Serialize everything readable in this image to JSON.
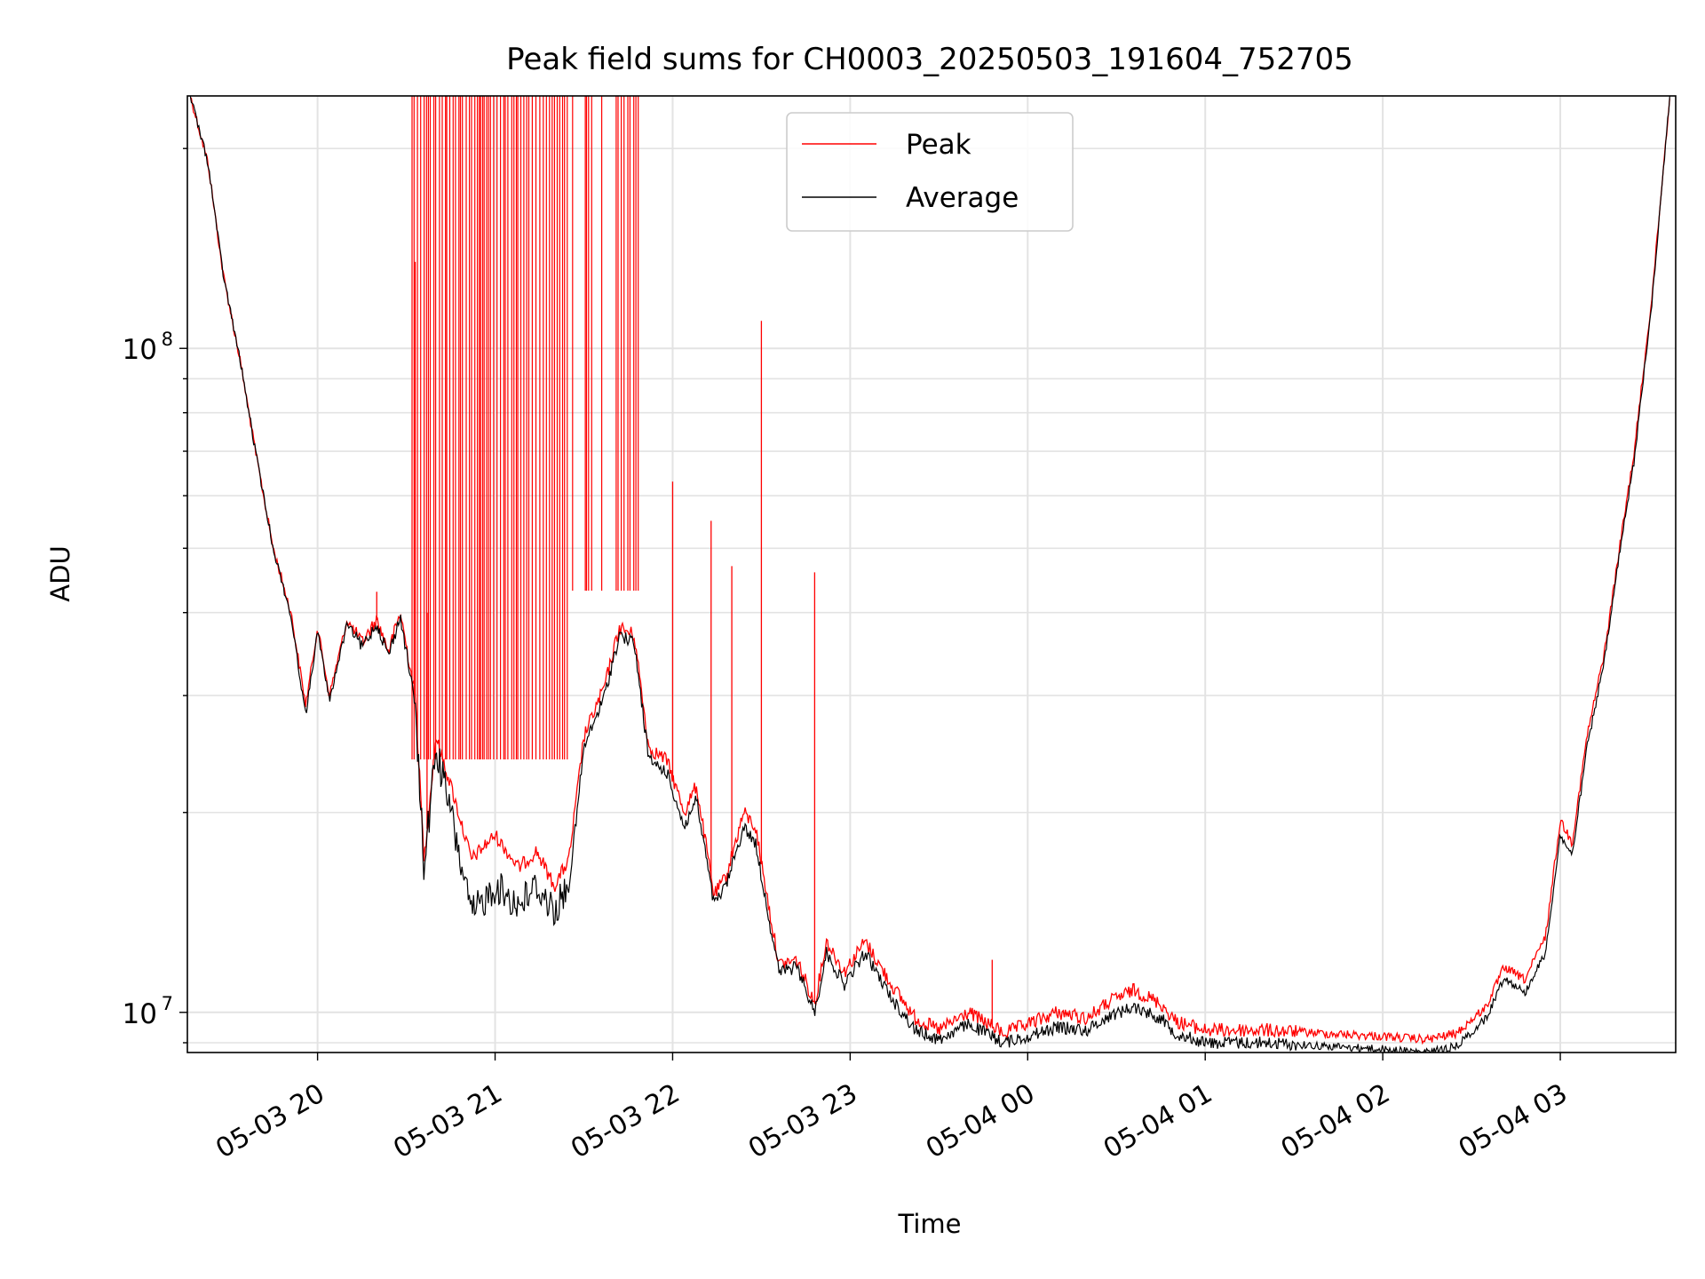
{
  "chart_data": {
    "type": "line",
    "title": "Peak field sums for CH0003_20250503_191604_752705",
    "xlabel": "Time",
    "ylabel": "ADU",
    "y_scale": "log",
    "ylim": [
      8700000,
      240000000
    ],
    "xlim": [
      "2025-05-03 19:16",
      "2025-05-04 03:39"
    ],
    "grid": true,
    "legend_position": "top-center",
    "x_ticks": [
      {
        "t": "2025-05-03 20:00",
        "label": "05-03 20"
      },
      {
        "t": "2025-05-03 21:00",
        "label": "05-03 21"
      },
      {
        "t": "2025-05-03 22:00",
        "label": "05-03 22"
      },
      {
        "t": "2025-05-03 23:00",
        "label": "05-03 23"
      },
      {
        "t": "2025-05-04 00:00",
        "label": "05-04 00"
      },
      {
        "t": "2025-05-04 01:00",
        "label": "05-04 01"
      },
      {
        "t": "2025-05-04 02:00",
        "label": "05-04 02"
      },
      {
        "t": "2025-05-04 03:00",
        "label": "05-04 03"
      }
    ],
    "y_ticks": [
      {
        "value": 10000000,
        "base": "10",
        "exp": "7"
      },
      {
        "value": 100000000,
        "base": "10",
        "exp": "8"
      }
    ],
    "series": [
      {
        "name": "Peak",
        "color": "#ff0000",
        "points": [
          [
            "2025-05-03 19:17",
            240000000
          ],
          [
            "2025-05-03 19:23",
            190000000
          ],
          [
            "2025-05-03 19:28",
            130000000
          ],
          [
            "2025-05-03 19:34",
            95000000
          ],
          [
            "2025-05-03 19:39",
            70000000
          ],
          [
            "2025-05-03 19:45",
            50000000
          ],
          [
            "2025-05-03 19:51",
            40000000
          ],
          [
            "2025-05-03 19:56",
            29000000
          ],
          [
            "2025-05-03 20:00",
            38000000
          ],
          [
            "2025-05-03 20:04",
            30000000
          ],
          [
            "2025-05-03 20:10",
            39000000
          ],
          [
            "2025-05-03 20:15",
            36000000
          ],
          [
            "2025-05-03 20:20",
            39000000
          ],
          [
            "2025-05-03 20:24",
            35000000
          ],
          [
            "2025-05-03 20:28",
            40000000
          ],
          [
            "2025-05-03 20:33",
            30000000
          ],
          [
            "2025-05-03 20:36",
            17000000
          ],
          [
            "2025-05-03 20:40",
            26000000
          ],
          [
            "2025-05-03 20:45",
            22000000
          ],
          [
            "2025-05-03 20:52",
            17000000
          ],
          [
            "2025-05-03 21:00",
            18500000
          ],
          [
            "2025-05-03 21:08",
            16500000
          ],
          [
            "2025-05-03 21:14",
            17500000
          ],
          [
            "2025-05-03 21:20",
            15500000
          ],
          [
            "2025-05-03 21:25",
            17000000
          ],
          [
            "2025-05-03 21:30",
            26000000
          ],
          [
            "2025-05-03 21:37",
            31000000
          ],
          [
            "2025-05-03 21:42",
            38000000
          ],
          [
            "2025-05-03 21:47",
            37000000
          ],
          [
            "2025-05-03 21:52",
            25000000
          ],
          [
            "2025-05-03 21:58",
            24000000
          ],
          [
            "2025-05-03 22:04",
            20000000
          ],
          [
            "2025-05-03 22:08",
            22000000
          ],
          [
            "2025-05-03 22:14",
            15000000
          ],
          [
            "2025-05-03 22:18",
            16000000
          ],
          [
            "2025-05-03 22:24",
            20000000
          ],
          [
            "2025-05-03 22:28",
            19000000
          ],
          [
            "2025-05-03 22:33",
            14000000
          ],
          [
            "2025-05-03 22:36",
            11800000
          ],
          [
            "2025-05-03 22:42",
            12000000
          ],
          [
            "2025-05-03 22:48",
            10300000
          ],
          [
            "2025-05-03 22:52",
            12800000
          ],
          [
            "2025-05-03 22:58",
            11500000
          ],
          [
            "2025-05-03 23:05",
            12800000
          ],
          [
            "2025-05-03 23:14",
            11000000
          ],
          [
            "2025-05-03 23:22",
            9800000
          ],
          [
            "2025-05-03 23:30",
            9400000
          ],
          [
            "2025-05-03 23:40",
            10000000
          ],
          [
            "2025-05-03 23:52",
            9300000
          ],
          [
            "2025-05-04 00:00",
            9600000
          ],
          [
            "2025-05-04 00:10",
            10000000
          ],
          [
            "2025-05-04 00:20",
            9800000
          ],
          [
            "2025-05-04 00:28",
            10400000
          ],
          [
            "2025-05-04 00:36",
            10800000
          ],
          [
            "2025-05-04 00:45",
            10300000
          ],
          [
            "2025-05-04 00:50",
            9700000
          ],
          [
            "2025-05-04 01:00",
            9400000
          ],
          [
            "2025-05-04 01:20",
            9400000
          ],
          [
            "2025-05-04 01:40",
            9300000
          ],
          [
            "2025-05-04 02:00",
            9200000
          ],
          [
            "2025-05-04 02:15",
            9100000
          ],
          [
            "2025-05-04 02:25",
            9300000
          ],
          [
            "2025-05-04 02:35",
            10200000
          ],
          [
            "2025-05-04 02:41",
            11700000
          ],
          [
            "2025-05-04 02:48",
            11200000
          ],
          [
            "2025-05-04 02:55",
            13000000
          ],
          [
            "2025-05-04 03:00",
            19500000
          ],
          [
            "2025-05-04 03:04",
            18000000
          ],
          [
            "2025-05-04 03:09",
            26000000
          ],
          [
            "2025-05-04 03:15",
            35000000
          ],
          [
            "2025-05-04 03:20",
            50000000
          ],
          [
            "2025-05-04 03:25",
            70000000
          ],
          [
            "2025-05-04 03:31",
            120000000
          ],
          [
            "2025-05-04 03:37",
            240000000
          ]
        ],
        "spikes": [
          [
            "2025-05-03 20:20",
            43000000
          ],
          [
            "2025-05-03 20:33",
            135000000
          ],
          [
            "2025-05-03 20:37",
            40000000
          ],
          [
            "2025-05-03 22:00",
            63000000
          ],
          [
            "2025-05-03 22:13",
            55000000
          ],
          [
            "2025-05-03 22:20",
            47000000
          ],
          [
            "2025-05-03 22:30",
            110000000
          ],
          [
            "2025-05-03 22:48",
            46000000
          ],
          [
            "2025-05-03 23:48",
            12000000
          ]
        ]
      },
      {
        "name": "Average",
        "color": "#000000",
        "points": [
          [
            "2025-05-03 19:17",
            240000000
          ],
          [
            "2025-05-03 19:23",
            190000000
          ],
          [
            "2025-05-03 19:28",
            130000000
          ],
          [
            "2025-05-03 19:34",
            95000000
          ],
          [
            "2025-05-03 19:39",
            70000000
          ],
          [
            "2025-05-03 19:45",
            50000000
          ],
          [
            "2025-05-03 19:51",
            39500000
          ],
          [
            "2025-05-03 19:56",
            28000000
          ],
          [
            "2025-05-03 20:00",
            37500000
          ],
          [
            "2025-05-03 20:04",
            29500000
          ],
          [
            "2025-05-03 20:10",
            38500000
          ],
          [
            "2025-05-03 20:15",
            35500000
          ],
          [
            "2025-05-03 20:20",
            38500000
          ],
          [
            "2025-05-03 20:24",
            34500000
          ],
          [
            "2025-05-03 20:28",
            39500000
          ],
          [
            "2025-05-03 20:33",
            29000000
          ],
          [
            "2025-05-03 20:36",
            16500000
          ],
          [
            "2025-05-03 20:40",
            25000000
          ],
          [
            "2025-05-03 20:45",
            20000000
          ],
          [
            "2025-05-03 20:52",
            14000000
          ],
          [
            "2025-05-03 21:00",
            15500000
          ],
          [
            "2025-05-03 21:08",
            14500000
          ],
          [
            "2025-05-03 21:14",
            15500000
          ],
          [
            "2025-05-03 21:20",
            14200000
          ],
          [
            "2025-05-03 21:25",
            15500000
          ],
          [
            "2025-05-03 21:30",
            25000000
          ],
          [
            "2025-05-03 21:37",
            30000000
          ],
          [
            "2025-05-03 21:42",
            37000000
          ],
          [
            "2025-05-03 21:47",
            36000000
          ],
          [
            "2025-05-03 21:52",
            24000000
          ],
          [
            "2025-05-03 21:58",
            23000000
          ],
          [
            "2025-05-03 22:04",
            19000000
          ],
          [
            "2025-05-03 22:08",
            21000000
          ],
          [
            "2025-05-03 22:14",
            14500000
          ],
          [
            "2025-05-03 22:18",
            15500000
          ],
          [
            "2025-05-03 22:24",
            19000000
          ],
          [
            "2025-05-03 22:28",
            18000000
          ],
          [
            "2025-05-03 22:33",
            13500000
          ],
          [
            "2025-05-03 22:36",
            11500000
          ],
          [
            "2025-05-03 22:42",
            11700000
          ],
          [
            "2025-05-03 22:48",
            10000000
          ],
          [
            "2025-05-03 22:52",
            12300000
          ],
          [
            "2025-05-03 22:58",
            11000000
          ],
          [
            "2025-05-03 23:05",
            12300000
          ],
          [
            "2025-05-03 23:14",
            10500000
          ],
          [
            "2025-05-03 23:22",
            9400000
          ],
          [
            "2025-05-03 23:30",
            9100000
          ],
          [
            "2025-05-03 23:40",
            9600000
          ],
          [
            "2025-05-03 23:52",
            9000000
          ],
          [
            "2025-05-04 00:00",
            9200000
          ],
          [
            "2025-05-04 00:10",
            9500000
          ],
          [
            "2025-05-04 00:20",
            9400000
          ],
          [
            "2025-05-04 00:28",
            9900000
          ],
          [
            "2025-05-04 00:36",
            10200000
          ],
          [
            "2025-05-04 00:45",
            9800000
          ],
          [
            "2025-05-04 00:50",
            9300000
          ],
          [
            "2025-05-04 01:00",
            9000000
          ],
          [
            "2025-05-04 01:20",
            9000000
          ],
          [
            "2025-05-04 01:40",
            8900000
          ],
          [
            "2025-05-04 02:00",
            8800000
          ],
          [
            "2025-05-04 02:15",
            8700000
          ],
          [
            "2025-05-04 02:25",
            8900000
          ],
          [
            "2025-05-04 02:35",
            9800000
          ],
          [
            "2025-05-04 02:41",
            11300000
          ],
          [
            "2025-05-04 02:48",
            10700000
          ],
          [
            "2025-05-04 02:55",
            12300000
          ],
          [
            "2025-05-04 03:00",
            18500000
          ],
          [
            "2025-05-04 03:04",
            17200000
          ],
          [
            "2025-05-04 03:09",
            25000000
          ],
          [
            "2025-05-04 03:15",
            34000000
          ],
          [
            "2025-05-04 03:20",
            49000000
          ],
          [
            "2025-05-04 03:25",
            68000000
          ],
          [
            "2025-05-04 03:31",
            118000000
          ],
          [
            "2025-05-04 03:37",
            240000000
          ]
        ]
      }
    ]
  }
}
